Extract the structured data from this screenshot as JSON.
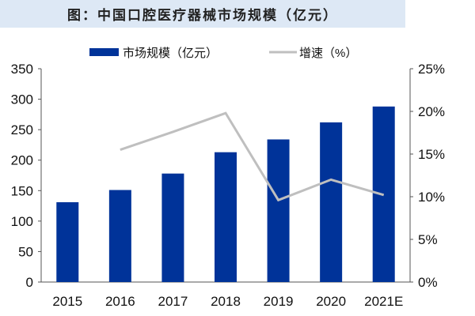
{
  "chart_data": {
    "type": "bar",
    "title": "图：中国口腔医疗器械市场规模（亿元）",
    "categories": [
      "2015",
      "2016",
      "2017",
      "2018",
      "2019",
      "2020",
      "2021E"
    ],
    "series": [
      {
        "name": "市场规模（亿元）",
        "type": "bar",
        "axis": "left",
        "color": "#003399",
        "values": [
          131,
          151,
          178,
          213,
          234,
          262,
          288
        ]
      },
      {
        "name": "增速（%）",
        "type": "line",
        "axis": "right",
        "color": "#bfbfbf",
        "values": [
          null,
          15.5,
          17.6,
          19.8,
          9.6,
          12.0,
          10.2
        ]
      }
    ],
    "yleft": {
      "lim": [
        0,
        350
      ],
      "ticks": [
        "0",
        "50",
        "100",
        "150",
        "200",
        "250",
        "300",
        "350"
      ]
    },
    "yright": {
      "lim": [
        0,
        25
      ],
      "ticks": [
        "0%",
        "5%",
        "10%",
        "15%",
        "20%",
        "25%"
      ]
    },
    "grid": false,
    "legend": "top"
  }
}
